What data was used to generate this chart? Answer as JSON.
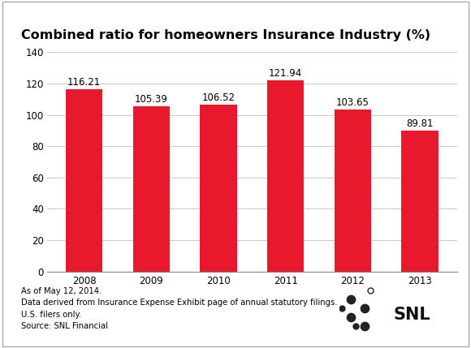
{
  "title": "Combined ratio for homeowners Insurance Industry (%)",
  "categories": [
    "2008",
    "2009",
    "2010",
    "2011",
    "2012",
    "2013"
  ],
  "values": [
    116.21,
    105.39,
    106.52,
    121.94,
    103.65,
    89.81
  ],
  "bar_color": "#E8192C",
  "ylim": [
    0,
    140
  ],
  "yticks": [
    0,
    20,
    40,
    60,
    80,
    100,
    120,
    140
  ],
  "title_fontsize": 11.5,
  "tick_fontsize": 8.5,
  "value_fontsize": 8.5,
  "footer_lines": [
    "As of May 12, 2014.",
    "Data derived from Insurance Expense Exhibit page of annual statutory filings.",
    "U.S. filers only.",
    "Source: SNL Financial"
  ],
  "footer_fontsize": 7.2,
  "background_color": "#FFFFFF",
  "grid_color": "#C8C8C8",
  "border_color": "#888888",
  "dot_color": "#222222",
  "snl_text_color": "#111111"
}
